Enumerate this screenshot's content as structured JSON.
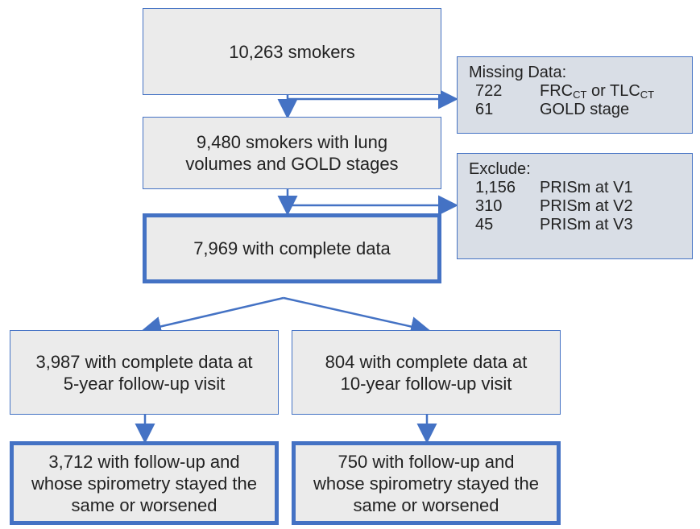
{
  "nodes": [
    {
      "lines": [
        "10,263 smokers"
      ]
    },
    {
      "lines": [
        "9,480 smokers with lung",
        "volumes and GOLD stages"
      ]
    },
    {
      "lines": [
        "7,969 with complete data"
      ]
    },
    {
      "lines": [
        "3,987 with complete data at",
        "5-year follow-up visit"
      ]
    },
    {
      "lines": [
        "804 with complete data at",
        "10-year follow-up visit"
      ]
    },
    {
      "lines": [
        "3,712 with follow-up and",
        "whose spirometry stayed the",
        "same or worsened"
      ]
    },
    {
      "lines": [
        "750 with follow-up and",
        "whose spirometry stayed the",
        "same or worsened"
      ]
    }
  ],
  "side_boxes": [
    {
      "title": "Missing Data:",
      "rows": [
        {
          "count": "722",
          "label": [
            "FRC",
            "CT",
            " or TLC",
            "CT"
          ]
        },
        {
          "count": "61",
          "label": [
            "GOLD stage"
          ]
        }
      ]
    },
    {
      "title": "Exclude:",
      "rows": [
        {
          "count": "1,156",
          "label": [
            "PRISm at V1"
          ]
        },
        {
          "count": "310",
          "label": [
            "PRISm at V2"
          ]
        },
        {
          "count": "45",
          "label": [
            "PRISm at V3"
          ]
        }
      ]
    }
  ]
}
